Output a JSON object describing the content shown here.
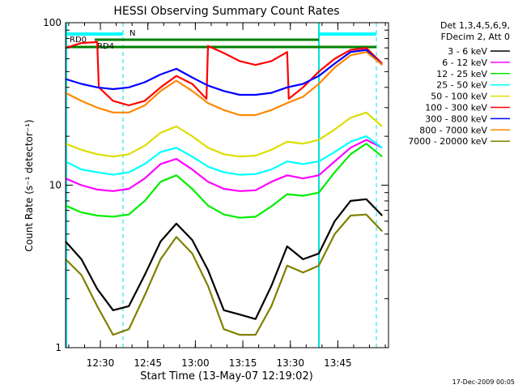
{
  "chart_data": {
    "type": "line",
    "title": "HESSI Observing Summary Count Rates",
    "xlabel": "Start Time (13-May-07 12:19:02)",
    "ylabel": "Count Rate (s⁻¹ detector⁻¹)",
    "x_unit": "minutes after 12:19:02",
    "xlim": [
      0,
      102
    ],
    "ylim": [
      1,
      100
    ],
    "y_scale": "log",
    "x_tick_labels": [
      "12:30",
      "12:45",
      "13:00",
      "13:15",
      "13:30",
      "13:45"
    ],
    "x_tick_minutes": [
      11,
      26,
      41,
      56,
      71,
      86
    ],
    "y_tick_labels": [
      "1",
      "10",
      "100"
    ],
    "y_tick_values": [
      1,
      10,
      100
    ],
    "legend_header": [
      "Det 1,3,4,5,6,9,",
      "FDecim 2, Att 0"
    ],
    "legend_position": "right",
    "flag_labels": [
      "N",
      "RD0",
      "RD4"
    ],
    "footer_date": "17-Dec-2009 00:05",
    "series": [
      {
        "name": "3 - 6 keV",
        "color": "#000000",
        "x": [
          0,
          5,
          10,
          15,
          20,
          25,
          30,
          35,
          40,
          45,
          50,
          55,
          60,
          65,
          70,
          75,
          80,
          85,
          90,
          95,
          100
        ],
        "y": [
          4.5,
          3.5,
          2.3,
          1.7,
          1.8,
          2.8,
          4.5,
          5.8,
          4.6,
          3.0,
          1.7,
          1.6,
          1.5,
          2.4,
          4.2,
          3.5,
          3.8,
          6.0,
          8.0,
          8.2,
          6.5
        ]
      },
      {
        "name": "6 - 12 keV",
        "color": "#ff00ff",
        "x": [
          0,
          5,
          10,
          15,
          20,
          25,
          30,
          35,
          40,
          45,
          50,
          55,
          60,
          65,
          70,
          75,
          80,
          85,
          90,
          95,
          100
        ],
        "y": [
          11,
          10,
          9.4,
          9.2,
          9.5,
          11,
          13.5,
          14.5,
          12.5,
          10.5,
          9.5,
          9.2,
          9.3,
          10.5,
          11.5,
          11,
          11.5,
          14,
          17,
          19,
          17
        ]
      },
      {
        "name": "12 - 25 keV",
        "color": "#00ee00",
        "x": [
          0,
          5,
          10,
          15,
          20,
          25,
          30,
          35,
          40,
          45,
          50,
          55,
          60,
          65,
          70,
          75,
          80,
          85,
          90,
          95,
          100
        ],
        "y": [
          7.5,
          6.8,
          6.5,
          6.4,
          6.6,
          8.0,
          10.5,
          11.5,
          9.5,
          7.5,
          6.6,
          6.3,
          6.4,
          7.4,
          8.8,
          8.6,
          9.0,
          12,
          15.5,
          18,
          15
        ]
      },
      {
        "name": "25 - 50 keV",
        "color": "#00ffff",
        "x": [
          0,
          5,
          10,
          15,
          20,
          25,
          30,
          35,
          40,
          45,
          50,
          55,
          60,
          65,
          70,
          75,
          80,
          85,
          90,
          95,
          100
        ],
        "y": [
          14,
          12.5,
          12,
          11.6,
          12,
          13.5,
          16,
          17,
          15,
          13,
          12,
          11.6,
          11.7,
          12.5,
          14,
          13.5,
          14,
          16,
          18.5,
          20,
          17
        ]
      },
      {
        "name": "50 - 100 keV",
        "color": "#dddd00",
        "x": [
          0,
          5,
          10,
          15,
          20,
          25,
          30,
          35,
          40,
          45,
          50,
          55,
          60,
          65,
          70,
          75,
          80,
          85,
          90,
          95,
          100
        ],
        "y": [
          18,
          16.5,
          15.5,
          15,
          15.5,
          17.5,
          21,
          23,
          20,
          17,
          15.5,
          15,
          15.2,
          16.5,
          18.5,
          18,
          19,
          22,
          26,
          28,
          23
        ]
      },
      {
        "name": "100 - 300 keV",
        "color": "#ff0000",
        "x": [
          0,
          5,
          10,
          10.5,
          15,
          20,
          25,
          30,
          35,
          40,
          44.5,
          45,
          50,
          55,
          60,
          65,
          70,
          70.5,
          75,
          80,
          85,
          90,
          95,
          100
        ],
        "y": [
          70,
          75,
          76,
          40,
          33,
          31,
          33,
          40,
          47,
          42,
          34,
          72,
          65,
          58,
          55,
          58,
          66,
          34,
          40,
          50,
          60,
          68,
          70,
          56
        ]
      },
      {
        "name": "300 - 800 keV",
        "color": "#0000ff",
        "x": [
          0,
          5,
          10,
          15,
          20,
          25,
          30,
          35,
          40,
          45,
          50,
          55,
          60,
          65,
          70,
          75,
          80,
          85,
          90,
          95,
          100
        ],
        "y": [
          45,
          42,
          40,
          39,
          40,
          43,
          48,
          52,
          46,
          41,
          38,
          36,
          36,
          37,
          40,
          42,
          47,
          56,
          66,
          68,
          55
        ]
      },
      {
        "name": "800 - 7000 keV",
        "color": "#ff8800",
        "x": [
          0,
          5,
          10,
          15,
          20,
          25,
          30,
          35,
          40,
          45,
          50,
          55,
          60,
          65,
          70,
          75,
          80,
          85,
          90,
          95,
          100
        ],
        "y": [
          37,
          33,
          30,
          28,
          28,
          31,
          38,
          44,
          38,
          32,
          29,
          27,
          27,
          29,
          32,
          35,
          42,
          53,
          63,
          66,
          55
        ]
      },
      {
        "name": "7000 - 20000 keV",
        "color": "#808000",
        "x": [
          0,
          5,
          10,
          15,
          20,
          25,
          30,
          35,
          40,
          45,
          50,
          55,
          60,
          65,
          70,
          75,
          80,
          85,
          90,
          95,
          100
        ],
        "y": [
          3.5,
          2.8,
          1.8,
          1.2,
          1.3,
          2.1,
          3.5,
          4.8,
          3.8,
          2.4,
          1.3,
          1.2,
          1.2,
          1.8,
          3.2,
          2.9,
          3.2,
          5.0,
          6.5,
          6.6,
          5.2
        ]
      }
    ]
  }
}
